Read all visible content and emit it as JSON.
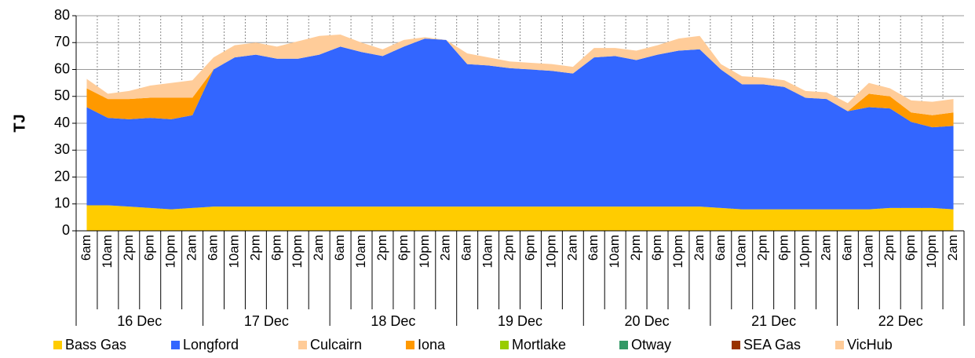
{
  "chart_data": {
    "type": "stacked_area",
    "y_label": "TJ",
    "categories": [
      "6am",
      "10am",
      "2pm",
      "6pm",
      "10pm",
      "2am",
      "6am",
      "10am",
      "2pm",
      "6pm",
      "10pm",
      "2am",
      "6am",
      "10am",
      "2pm",
      "6pm",
      "10pm",
      "2am",
      "6am",
      "10am",
      "2pm",
      "6pm",
      "10pm",
      "2am",
      "6am",
      "10am",
      "2pm",
      "6pm",
      "10pm",
      "2am",
      "6am",
      "10am",
      "2pm",
      "6pm",
      "10pm",
      "2am",
      "6am",
      "10am",
      "2pm",
      "6pm",
      "10pm",
      "2am"
    ],
    "days": [
      "16 Dec",
      "17 Dec",
      "18 Dec",
      "19 Dec",
      "20 Dec",
      "21 Dec",
      "22 Dec"
    ],
    "ylim": [
      0,
      80
    ],
    "yticks": [
      0,
      10,
      20,
      30,
      40,
      50,
      60,
      70,
      80
    ],
    "grid": true,
    "series": [
      {
        "name": "Bass Gas",
        "color": "#ffcc00",
        "values": [
          9.5,
          9.5,
          9,
          8.5,
          8,
          8.5,
          9,
          9,
          9,
          9,
          9,
          9,
          9,
          9,
          9,
          9,
          9,
          9,
          9,
          9,
          9,
          9,
          9,
          9,
          9,
          9,
          9,
          9,
          9,
          9,
          8.5,
          8,
          8,
          8,
          8,
          8,
          8,
          8,
          8.5,
          8.5,
          8.5,
          8
        ]
      },
      {
        "name": "Longford",
        "color": "#3366ff",
        "values": [
          36.5,
          32.5,
          32.5,
          33.5,
          33.5,
          34.5,
          51,
          55.5,
          56.5,
          55,
          55,
          56.5,
          59.5,
          57.5,
          56,
          59.5,
          62.5,
          62,
          53,
          52.5,
          51.5,
          51,
          50.5,
          49.5,
          55.5,
          56,
          54.5,
          56.5,
          58,
          58.5,
          51.5,
          46.5,
          46.5,
          45.5,
          41.5,
          41,
          36.5,
          38,
          37,
          32,
          30,
          31
        ]
      },
      {
        "name": "Culcairn",
        "color": "#ffcc99",
        "values": [
          0,
          0,
          0,
          0,
          0,
          0,
          0,
          0,
          0,
          0,
          0,
          0,
          0,
          0,
          0,
          0,
          0,
          0,
          0,
          0,
          0,
          0,
          0,
          0,
          0,
          0,
          0,
          0,
          0,
          0,
          0,
          0,
          0,
          0,
          0,
          0,
          0,
          0,
          0,
          0,
          0,
          0
        ]
      },
      {
        "name": "Iona",
        "color": "#ff9900",
        "values": [
          7,
          7,
          7.5,
          7.5,
          8,
          6.5,
          0,
          0,
          0,
          0,
          0,
          0,
          0,
          0,
          0,
          0,
          0,
          0,
          0,
          0,
          0,
          0,
          0,
          0,
          0,
          0,
          0,
          0,
          0,
          0,
          0,
          0,
          0,
          0,
          0,
          0,
          0,
          5,
          4.5,
          3.5,
          4.5,
          5
        ]
      },
      {
        "name": "Mortlake",
        "color": "#99cc00",
        "values": [
          0,
          0,
          0,
          0,
          0,
          0,
          0,
          0,
          0,
          0,
          0,
          0,
          0,
          0,
          0,
          0,
          0,
          0,
          0,
          0,
          0,
          0,
          0,
          0,
          0,
          0,
          0,
          0,
          0,
          0,
          0,
          0,
          0,
          0,
          0,
          0,
          0,
          0,
          0,
          0,
          0,
          0
        ]
      },
      {
        "name": "Otway",
        "color": "#339966",
        "values": [
          0,
          0,
          0,
          0,
          0,
          0,
          0,
          0,
          0,
          0,
          0,
          0,
          0,
          0,
          0,
          0,
          0,
          0,
          0,
          0,
          0,
          0,
          0,
          0,
          0,
          0,
          0,
          0,
          0,
          0,
          0,
          0,
          0,
          0,
          0,
          0,
          0,
          0,
          0,
          0,
          0,
          0
        ]
      },
      {
        "name": "SEA Gas",
        "color": "#993300",
        "values": [
          0,
          0,
          0,
          0,
          0,
          0,
          0,
          0,
          0,
          0,
          0,
          0,
          0,
          0,
          0,
          0,
          0,
          0,
          0,
          0,
          0,
          0,
          0,
          0,
          0,
          0,
          0,
          0,
          0,
          0,
          0,
          0,
          0,
          0,
          0,
          0,
          0,
          0,
          0,
          0,
          0,
          0
        ]
      },
      {
        "name": "VicHub",
        "color": "#ffcc99",
        "values": [
          3.5,
          2,
          3,
          4.5,
          5.5,
          6.5,
          4.5,
          4.5,
          4.5,
          4.5,
          6.5,
          7,
          4.5,
          3.5,
          2.5,
          2.5,
          0.5,
          0,
          4,
          3,
          2.5,
          2.5,
          2.5,
          2.5,
          3.5,
          3,
          3.5,
          3.5,
          4.5,
          5,
          2,
          3,
          2.5,
          2.5,
          2.5,
          2.5,
          3,
          4,
          3,
          4.5,
          5,
          5
        ]
      }
    ]
  }
}
